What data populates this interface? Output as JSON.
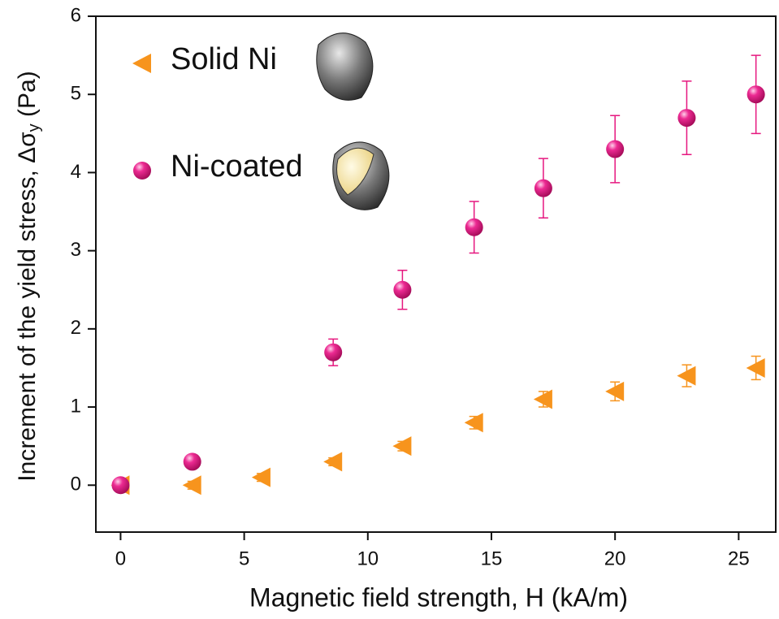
{
  "chart_data": {
    "type": "scatter",
    "xlabel": "Magnetic field strength, H (kA/m)",
    "ylabel": "Increment of the yield stress, Δσ",
    "ylabel_sub": "y",
    "ylabel_unit": "(Pa)",
    "xlim": [
      -1,
      26.5
    ],
    "ylim": [
      -0.6,
      6
    ],
    "xticks": [
      0,
      5,
      10,
      15,
      20,
      25
    ],
    "yticks": [
      0,
      1,
      2,
      3,
      4,
      5,
      6
    ],
    "legend": "upper left",
    "series": [
      {
        "name": "Solid Ni",
        "color": "#f7941d",
        "marker": "triangle-left",
        "x": [
          0,
          2.9,
          5.7,
          8.6,
          11.4,
          14.3,
          17.1,
          20,
          22.9,
          25.7
        ],
        "values": [
          0,
          0,
          0.1,
          0.3,
          0.5,
          0.8,
          1.1,
          1.2,
          1.4,
          1.5
        ],
        "errors": [
          0.05,
          0.05,
          0.05,
          0.05,
          0.06,
          0.08,
          0.1,
          0.12,
          0.14,
          0.15
        ]
      },
      {
        "name": "Ni-coated",
        "color": "#e6177f",
        "marker": "sphere",
        "x": [
          0,
          2.9,
          8.6,
          11.4,
          14.3,
          17.1,
          20,
          22.9,
          25.7
        ],
        "values": [
          0,
          0.3,
          1.7,
          2.5,
          3.3,
          3.8,
          4.3,
          4.7,
          5.0
        ],
        "errors": [
          0.05,
          0.05,
          0.17,
          0.25,
          0.33,
          0.38,
          0.43,
          0.47,
          0.5
        ]
      }
    ]
  }
}
